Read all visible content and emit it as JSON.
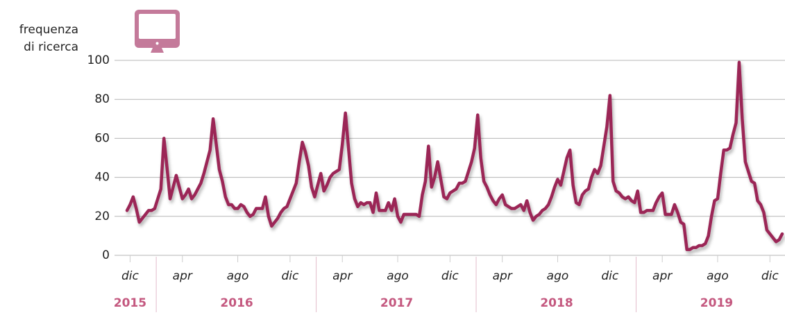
{
  "chart_data": {
    "type": "line",
    "y_label": [
      "frequenza",
      "di ricerca"
    ],
    "ylim": [
      0,
      100
    ],
    "yticks": [
      0,
      20,
      40,
      60,
      80,
      100
    ],
    "grid": true,
    "years": [
      "2015",
      "2016",
      "2017",
      "2018",
      "2019"
    ],
    "categories": [
      null,
      "dic",
      null,
      null,
      null,
      null,
      null,
      null,
      null,
      null,
      null,
      null,
      null,
      null,
      null,
      null,
      null,
      null,
      "apr",
      null,
      null,
      null,
      null,
      null,
      null,
      null,
      null,
      null,
      null,
      null,
      null,
      null,
      null,
      null,
      null,
      null,
      "ago",
      null,
      null,
      null,
      null,
      null,
      null,
      null,
      null,
      null,
      null,
      null,
      null,
      null,
      null,
      null,
      null,
      "dic",
      null,
      null,
      null,
      null,
      null,
      null,
      null,
      null,
      null,
      null,
      null,
      null,
      null,
      null,
      null,
      null,
      "apr",
      null,
      null,
      null,
      null,
      null,
      null,
      null,
      null,
      null,
      null,
      null,
      null,
      null,
      null,
      null,
      null,
      null,
      "ago",
      null,
      null,
      null,
      null,
      null,
      null,
      null,
      null,
      null,
      null,
      null,
      null,
      null,
      null,
      null,
      null,
      "dic",
      null,
      null,
      null,
      null,
      null,
      null,
      null,
      null,
      null,
      null,
      null,
      null,
      null,
      null,
      null,
      null,
      "apr",
      null,
      null,
      null,
      null,
      null,
      null,
      null,
      null,
      null,
      null,
      null,
      null,
      null,
      null,
      null,
      null,
      null,
      "ago",
      null,
      null,
      null,
      null,
      null,
      null,
      null,
      null,
      null,
      null,
      null,
      null,
      null,
      null,
      null,
      null,
      "dic",
      null,
      null,
      null,
      null,
      null,
      null,
      null,
      null,
      null,
      null,
      null,
      null,
      null,
      null,
      null,
      null,
      "apr",
      null,
      null,
      null,
      null,
      null,
      null,
      null,
      null,
      null,
      null,
      null,
      null,
      null,
      null,
      null,
      null,
      null,
      "ago",
      null,
      null,
      null,
      null,
      null,
      null,
      null,
      null,
      null,
      null,
      null,
      null,
      null,
      null,
      null,
      null,
      "dic",
      null,
      null,
      null,
      null
    ],
    "series": [
      {
        "name": "frequenza di ricerca",
        "color": "#9b2556",
        "values": [
          23,
          26,
          30,
          24,
          17,
          19,
          21,
          23,
          23,
          24,
          29,
          34,
          60,
          45,
          29,
          35,
          41,
          35,
          29,
          31,
          34,
          29,
          31,
          34,
          37,
          42,
          48,
          54,
          70,
          57,
          44,
          38,
          30,
          26,
          26,
          24,
          24,
          26,
          25,
          22,
          20,
          21,
          24,
          24,
          24,
          30,
          20,
          15,
          17,
          19,
          22,
          24,
          25,
          29,
          33,
          37,
          48,
          58,
          53,
          46,
          35,
          30,
          36,
          42,
          33,
          36,
          40,
          42,
          43,
          44,
          57,
          73,
          55,
          37,
          29,
          25,
          27,
          26,
          27,
          27,
          22,
          32,
          23,
          23,
          23,
          27,
          23,
          29,
          20,
          17,
          21,
          21,
          21,
          21,
          21,
          20,
          31,
          38,
          56,
          35,
          40,
          48,
          39,
          30,
          29,
          32,
          33,
          34,
          37,
          37,
          38,
          43,
          48,
          55,
          72,
          50,
          38,
          35,
          31,
          28,
          26,
          29,
          31,
          26,
          25,
          24,
          24,
          25,
          26,
          23,
          28,
          22,
          18,
          20,
          21,
          23,
          24,
          26,
          30,
          35,
          39,
          36,
          43,
          50,
          54,
          36,
          27,
          26,
          31,
          33,
          34,
          40,
          44,
          42,
          46,
          56,
          66,
          82,
          38,
          33,
          32,
          30,
          29,
          30,
          28,
          27,
          33,
          22,
          22,
          23,
          23,
          23,
          27,
          30,
          32,
          21,
          21,
          21,
          26,
          22,
          17,
          16,
          3,
          3,
          4,
          4,
          5,
          5,
          6,
          10,
          20,
          28,
          29,
          42,
          54,
          54,
          55,
          62,
          68,
          99,
          70,
          48,
          43,
          38,
          37,
          28,
          26,
          22,
          13,
          11,
          9,
          7,
          8,
          11
        ]
      }
    ]
  }
}
